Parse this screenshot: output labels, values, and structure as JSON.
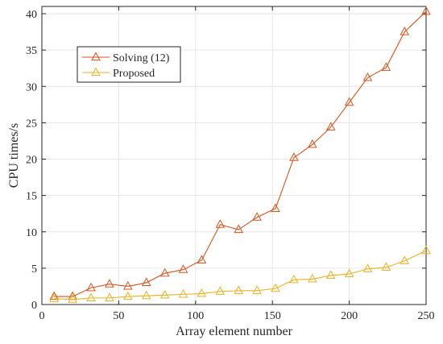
{
  "colors": {
    "solving": "#D95319",
    "proposed": "#EDB120",
    "grid": "#E6E6E6",
    "axis": "#262626"
  },
  "chart_data": {
    "type": "line",
    "xlabel": "Array element number",
    "ylabel": "CPU times/s",
    "xlim": [
      0,
      250
    ],
    "ylim": [
      0,
      41
    ],
    "xticks": [
      0,
      50,
      100,
      150,
      200,
      250
    ],
    "yticks": [
      0,
      5,
      10,
      15,
      20,
      25,
      30,
      35,
      40
    ],
    "grid": true,
    "legend_position": "top-left",
    "marker": "triangle",
    "series": [
      {
        "name": "Solving (12)",
        "color": "#D95319",
        "x": [
          8,
          20,
          32,
          44,
          56,
          68,
          80,
          92,
          104,
          116,
          128,
          140,
          152,
          164,
          176,
          188,
          200,
          212,
          224,
          236,
          250
        ],
        "y": [
          1.1,
          1.1,
          2.3,
          2.8,
          2.5,
          3.0,
          4.3,
          4.8,
          6.1,
          11.0,
          10.3,
          12.0,
          13.2,
          20.2,
          22.0,
          24.4,
          27.8,
          31.2,
          32.6,
          37.5,
          40.3
        ]
      },
      {
        "name": "Proposed",
        "color": "#EDB120",
        "x": [
          8,
          20,
          32,
          44,
          56,
          68,
          80,
          92,
          104,
          116,
          128,
          140,
          152,
          164,
          176,
          188,
          200,
          212,
          224,
          236,
          250
        ],
        "y": [
          0.8,
          0.7,
          0.9,
          0.9,
          1.1,
          1.2,
          1.3,
          1.4,
          1.5,
          1.8,
          1.9,
          1.9,
          2.2,
          3.4,
          3.5,
          4.0,
          4.2,
          4.9,
          5.1,
          6.0,
          7.4
        ]
      }
    ]
  }
}
